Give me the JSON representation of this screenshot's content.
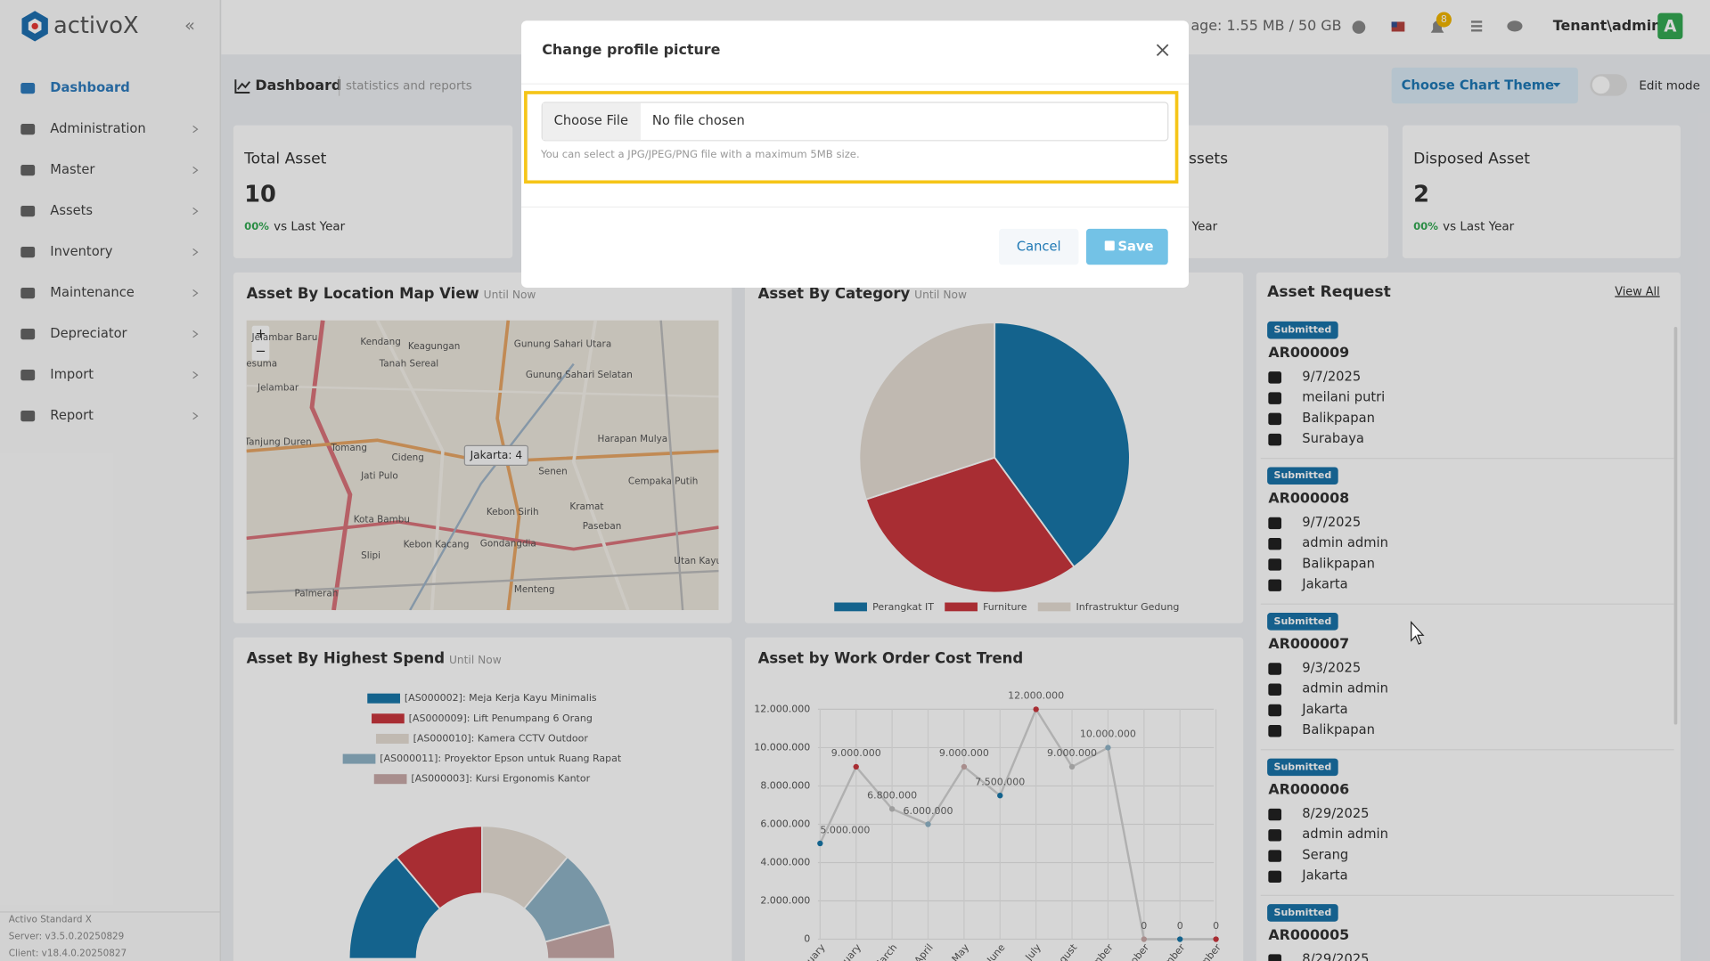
{
  "brand": "activoX",
  "sidebar": {
    "menu": [
      "Dashboard",
      "Administration",
      "Master",
      "Assets",
      "Inventory",
      "Maintenance",
      "Depreciator",
      "Import",
      "Report"
    ],
    "footer": [
      "Activo Standard X",
      "Server: v3.5.0.20250829",
      "Client: v18.4.0.20250827"
    ]
  },
  "topbar": {
    "storage": "age: 1.55 MB / 50 GB",
    "notifications": "8",
    "user": "Tenant\\admin",
    "avatar": "A"
  },
  "header": {
    "title": "Dashboard",
    "subtitle": "statistics and reports",
    "theme_button": "Choose Chart Theme",
    "edit_mode": "Edit mode"
  },
  "cards": [
    {
      "title": "Total Asset",
      "value": "10",
      "change": "00%",
      "note": "vs Last Year"
    },
    {
      "title": "ssets",
      "note": "Year"
    },
    {
      "title": "Disposed Asset",
      "value": "2",
      "change": "00%",
      "note": "vs Last Year"
    }
  ],
  "map": {
    "title": "Asset By Location Map View",
    "badge": "Until Now",
    "marker": "Jakarta: 4",
    "places": [
      "Jelambar Baru",
      "Kendang",
      "Keagungan",
      "Gunung Sahari Utara",
      "esuma",
      "Tanah Sereal",
      "Gunung Sahari Selatan",
      "Jelambar",
      "Harapan Mulya",
      "Tanjung Duren",
      "Tomang",
      "Cideng",
      "Senen",
      "Jati Pulo",
      "Cempaka Putih",
      "Kebon Sirih",
      "Kramat",
      "Kota Bambu",
      "Paseban",
      "Gondangdia",
      "Kebon Kacang",
      "Slipi",
      "Menteng",
      "Palmerah",
      "Utan Kayu"
    ]
  },
  "category_chart": {
    "type": "pie",
    "title": "Asset By Category",
    "badge": "Until Now",
    "series": [
      {
        "name": "Perangkat IT",
        "color": "#1877a8",
        "value": 4
      },
      {
        "name": "Furniture",
        "color": "#c9363d",
        "value": 3
      },
      {
        "name": "Infrastruktur Gedung",
        "color": "#e5ddd3",
        "value": 3
      }
    ]
  },
  "spend_chart": {
    "type": "half-donut",
    "title": "Asset By Highest Spend",
    "badge": "Until Now",
    "series": [
      {
        "name": "[AS000002]: Meja Kerja Kayu Minimalis",
        "color": "#1877a8",
        "value": 50
      },
      {
        "name": "[AS000009]: Lift Penumpang 6 Orang",
        "color": "#c9363d",
        "value": 40
      },
      {
        "name": "[AS000010]: Kamera CCTV Outdoor",
        "color": "#e5ddd3",
        "value": 40
      },
      {
        "name": "[AS000011]: Proyektor Epson untuk Ruang Rapat",
        "color": "#8fb3c6",
        "value": 35
      },
      {
        "name": "[AS000003]: Kursi Ergonomis Kantor",
        "color": "#c9aaa8",
        "value": 15
      }
    ]
  },
  "cost_chart": {
    "type": "line",
    "title": "Asset by Work Order Cost Trend",
    "categories": [
      "January",
      "February",
      "March",
      "April",
      "May",
      "June",
      "July",
      "August",
      "September",
      "October",
      "November",
      "December"
    ],
    "values": [
      5000000,
      9000000,
      6800000,
      6000000,
      9000000,
      7500000,
      12000000,
      9000000,
      10000000,
      0,
      0,
      0
    ],
    "value_labels": [
      "5.000.000",
      "9.000.000",
      "6.800.000",
      "6.000.000",
      "9.000.000",
      "7.500.000",
      "12.000.000",
      "9.000.000",
      "10.000.000",
      "0",
      "0",
      "0"
    ],
    "ylim": [
      0,
      12000000
    ],
    "yticks": [
      0,
      {
        "value": 2000000,
        "label": "2.000.000"
      },
      {
        "value": 4000000,
        "label": "4.000.000"
      },
      {
        "value": 6000000,
        "label": "6.000.000"
      },
      {
        "value": 8000000,
        "label": "8.000.000"
      },
      {
        "value": 10000000,
        "label": "10.000.000"
      },
      {
        "value": 12000000,
        "label": "12.000.000"
      }
    ],
    "grid": true,
    "line_color": "#d2d2d2",
    "point_colors": [
      "#1877a8",
      "#c9363d",
      "#bdbdbd",
      "#8fb3c6",
      "#c9aaa8"
    ]
  },
  "requests": {
    "title": "Asset Request",
    "view_all": "View All",
    "items": [
      {
        "status": "Submitted",
        "id": "AR000009",
        "date": "9/7/2025",
        "requester": "meilani putri",
        "from": "Balikpapan",
        "to": "Surabaya"
      },
      {
        "status": "Submitted",
        "id": "AR000008",
        "date": "9/7/2025",
        "requester": "admin admin",
        "from": "Balikpapan",
        "to": "Jakarta"
      },
      {
        "status": "Submitted",
        "id": "AR000007",
        "date": "9/3/2025",
        "requester": "admin admin",
        "from": "Jakarta",
        "to": "Balikpapan"
      },
      {
        "status": "Submitted",
        "id": "AR000006",
        "date": "8/29/2025",
        "requester": "admin admin",
        "from": "Serang",
        "to": "Jakarta"
      },
      {
        "status": "Submitted",
        "id": "AR000005",
        "date": "8/29/2025"
      }
    ]
  },
  "modal": {
    "title": "Change profile picture",
    "choose_file": "Choose File",
    "no_file": "No file chosen",
    "hint": "You can select a JPG/JPEG/PNG file with a maximum 5MB size.",
    "cancel": "Cancel",
    "save": "Save"
  }
}
